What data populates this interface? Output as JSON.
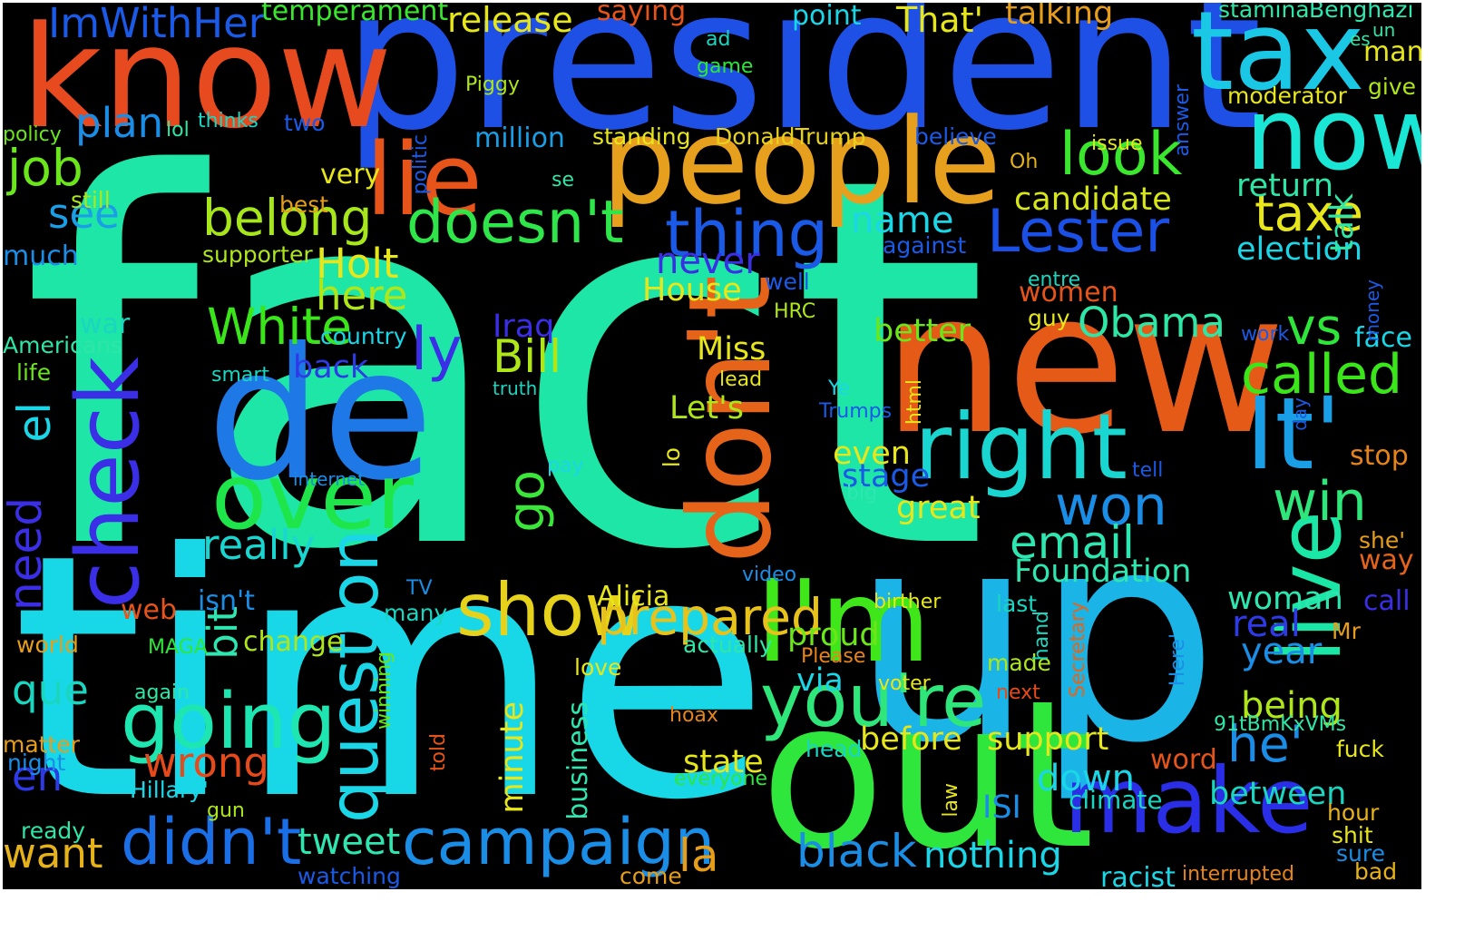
{
  "words": [
    {
      "text": "fact",
      "color": "#1ee6a6"
    },
    {
      "text": "time",
      "color": "#18d8e8"
    },
    {
      "text": "president",
      "color": "#1e50e6"
    },
    {
      "text": "up",
      "color": "#1ab4e6"
    },
    {
      "text": "new",
      "color": "#e65a18"
    },
    {
      "text": "out",
      "color": "#2ee63c"
    },
    {
      "text": "know",
      "color": "#e64a1e"
    },
    {
      "text": "people",
      "color": "#e6a01e"
    },
    {
      "text": "de",
      "color": "#1e78e6"
    },
    {
      "text": "tax",
      "color": "#1ac8e6"
    },
    {
      "text": "now",
      "color": "#1ae6d6"
    },
    {
      "text": "lie",
      "color": "#e6541a"
    },
    {
      "text": "It'",
      "color": "#1a9ee6"
    },
    {
      "text": "make",
      "color": "#2a2ee6"
    },
    {
      "text": "don't",
      "color": "#e6641a"
    },
    {
      "text": "I'm",
      "color": "#3ee61a"
    },
    {
      "text": "live",
      "color": "#1ae6a6"
    },
    {
      "text": "right",
      "color": "#1ad6d0"
    },
    {
      "text": "check",
      "color": "#3a2ee6"
    },
    {
      "text": "over",
      "color": "#1ee64a"
    },
    {
      "text": "going",
      "color": "#1ee6b0"
    },
    {
      "text": "you're",
      "color": "#2ee67a"
    },
    {
      "text": "show",
      "color": "#e6d21a"
    },
    {
      "text": "question",
      "color": "#1ad6e6"
    },
    {
      "text": "campaign",
      "color": "#1a8ee6"
    },
    {
      "text": "didn't",
      "color": "#1a6ee6"
    },
    {
      "text": "doesn't",
      "color": "#2ee64a"
    },
    {
      "text": "thing",
      "color": "#1a5ae6"
    },
    {
      "text": "Lester",
      "color": "#1a50e6"
    },
    {
      "text": "look",
      "color": "#3ae62e"
    },
    {
      "text": "belong",
      "color": "#a6e61a"
    },
    {
      "text": "job",
      "color": "#6ae61a"
    },
    {
      "text": "taxe",
      "color": "#e6e61a"
    },
    {
      "text": "called",
      "color": "#3ae61a"
    },
    {
      "text": "win",
      "color": "#2ee67a"
    },
    {
      "text": "won",
      "color": "#1a8ee6"
    },
    {
      "text": "email",
      "color": "#2ee6b0"
    },
    {
      "text": "need",
      "color": "#3a2ee6"
    },
    {
      "text": "el",
      "color": "#1ad6e6"
    },
    {
      "text": "prepared",
      "color": "#e6c21a"
    },
    {
      "text": "la",
      "color": "#e69e1a"
    },
    {
      "text": "White",
      "color": "#3ae61a"
    },
    {
      "text": "Holt",
      "color": "#e6e61a"
    },
    {
      "text": "here",
      "color": "#aee61a"
    },
    {
      "text": "ly",
      "color": "#3a2ee6"
    },
    {
      "text": "go",
      "color": "#3ae63a"
    },
    {
      "text": "Bill",
      "color": "#aee61a"
    },
    {
      "text": "Obama",
      "color": "#2ee6a6"
    },
    {
      "text": "vs",
      "color": "#2ee63a"
    },
    {
      "text": "he'",
      "color": "#1a8ee6"
    },
    {
      "text": "black",
      "color": "#1a8ee6"
    },
    {
      "text": "ImWithHer",
      "color": "#1a5ae6"
    },
    {
      "text": "plan",
      "color": "#1a8ee6"
    },
    {
      "text": "see",
      "color": "#1a9ee6"
    },
    {
      "text": "really",
      "color": "#1ad6d0"
    },
    {
      "text": "want",
      "color": "#e6b21a"
    },
    {
      "text": "en",
      "color": "#2e3ae6"
    },
    {
      "text": "que",
      "color": "#1ad6c0"
    },
    {
      "text": "bit",
      "color": "#2ee6b0"
    },
    {
      "text": "tweet",
      "color": "#2ee6b0"
    },
    {
      "text": "wrong",
      "color": "#e64a1a"
    },
    {
      "text": "candidate",
      "color": "#d6e61a"
    },
    {
      "text": "name",
      "color": "#1ad6e6"
    },
    {
      "text": "Foundation",
      "color": "#2ee6b0"
    },
    {
      "text": "release",
      "color": "#e6e61a"
    },
    {
      "text": "That'",
      "color": "#e6e61a"
    },
    {
      "text": "talking",
      "color": "#e69e1a"
    },
    {
      "text": "point",
      "color": "#1ad6e6"
    },
    {
      "text": "temperament",
      "color": "#3ae62e"
    },
    {
      "text": "saying",
      "color": "#e6541a"
    },
    {
      "text": "million",
      "color": "#1a9ee6"
    },
    {
      "text": "standing",
      "color": "#e6e61a"
    },
    {
      "text": "DonaldTrump",
      "color": "#e6d21a"
    },
    {
      "text": "very",
      "color": "#e6e61a"
    },
    {
      "text": "never",
      "color": "#3a2ee6"
    },
    {
      "text": "House",
      "color": "#e6e61a"
    },
    {
      "text": "Miss",
      "color": "#e6e61a"
    },
    {
      "text": "Let's",
      "color": "#aee61a"
    },
    {
      "text": "better",
      "color": "#6ae61a"
    },
    {
      "text": "even",
      "color": "#e6e61a"
    },
    {
      "text": "stage",
      "color": "#1a5ae6"
    },
    {
      "text": "great",
      "color": "#e6e61a"
    },
    {
      "text": "year",
      "color": "#1a8ee6"
    },
    {
      "text": "real",
      "color": "#2e3ae6"
    },
    {
      "text": "woman",
      "color": "#2ee6b0"
    },
    {
      "text": "being",
      "color": "#aee61a"
    },
    {
      "text": "support",
      "color": "#e6e61a"
    },
    {
      "text": "down",
      "color": "#1ad6e6"
    },
    {
      "text": "between",
      "color": "#1ad6c0"
    },
    {
      "text": "nothing",
      "color": "#1ad6e6"
    },
    {
      "text": "state",
      "color": "#e6e61a"
    },
    {
      "text": "before",
      "color": "#e6e61a"
    },
    {
      "text": "minute",
      "color": "#e6e61a"
    },
    {
      "text": "business",
      "color": "#2ee6b0"
    },
    {
      "text": "Iraq",
      "color": "#3a2ee6"
    },
    {
      "text": "proud",
      "color": "#6ae61a"
    },
    {
      "text": "via",
      "color": "#1ad6e6"
    },
    {
      "text": "Alicia",
      "color": "#e6e61a"
    },
    {
      "text": "ISI",
      "color": "#1a8ee6"
    },
    {
      "text": "return",
      "color": "#2ee6a6"
    },
    {
      "text": "election",
      "color": "#1ad6e6"
    },
    {
      "text": "talk",
      "color": "#2ee6a6"
    },
    {
      "text": "stamina",
      "color": "#2ee6a6"
    },
    {
      "text": "Benghazi",
      "color": "#2ee6b0"
    },
    {
      "text": "man",
      "color": "#e6e61a"
    },
    {
      "text": "give",
      "color": "#aee61a"
    },
    {
      "text": "moderator",
      "color": "#e6e61a"
    },
    {
      "text": "women",
      "color": "#e6541a"
    },
    {
      "text": "face",
      "color": "#1ad6e6"
    },
    {
      "text": "stop",
      "color": "#e6841a"
    },
    {
      "text": "way",
      "color": "#e6641a"
    },
    {
      "text": "call",
      "color": "#3a2ee6"
    },
    {
      "text": "Mr",
      "color": "#e69e1a"
    },
    {
      "text": "hour",
      "color": "#e6b21a"
    },
    {
      "text": "bad",
      "color": "#e6b21a"
    },
    {
      "text": "she'",
      "color": "#e69e1a"
    },
    {
      "text": "word",
      "color": "#e6541a"
    },
    {
      "text": "fuck",
      "color": "#e6e61a"
    },
    {
      "text": "sure",
      "color": "#1a8ee6"
    },
    {
      "text": "shit",
      "color": "#e6e61a"
    },
    {
      "text": "racist",
      "color": "#1ad6e6"
    },
    {
      "text": "interrupted",
      "color": "#e6841a"
    },
    {
      "text": "climate",
      "color": "#1ad6c0"
    },
    {
      "text": "much",
      "color": "#1a8ee6"
    },
    {
      "text": "still",
      "color": "#aee61a"
    },
    {
      "text": "best",
      "color": "#e69e1a"
    },
    {
      "text": "supporter",
      "color": "#aee61a"
    },
    {
      "text": "policy",
      "color": "#6ae61a"
    },
    {
      "text": "lol",
      "color": "#2ee6a6"
    },
    {
      "text": "thinks",
      "color": "#1ad6c0"
    },
    {
      "text": "two",
      "color": "#1a5ae6"
    },
    {
      "text": "war",
      "color": "#1ad6c0"
    },
    {
      "text": "Americans",
      "color": "#2ee6a6"
    },
    {
      "text": "life",
      "color": "#6ae61a"
    },
    {
      "text": "country",
      "color": "#1ad6e6"
    },
    {
      "text": "back",
      "color": "#2e3ae6"
    },
    {
      "text": "smart",
      "color": "#1ad6c0"
    },
    {
      "text": "truth",
      "color": "#1ad6c0"
    },
    {
      "text": "internet",
      "color": "#1a8ee6"
    },
    {
      "text": "web",
      "color": "#e6541a"
    },
    {
      "text": "isn't",
      "color": "#1a8ee6"
    },
    {
      "text": "change",
      "color": "#aee61a"
    },
    {
      "text": "MAGA",
      "color": "#2ee63a"
    },
    {
      "text": "world",
      "color": "#e69e1a"
    },
    {
      "text": "matter",
      "color": "#e69e1a"
    },
    {
      "text": "night",
      "color": "#1a8ee6"
    },
    {
      "text": "Hillary'",
      "color": "#1ad6e6"
    },
    {
      "text": "gun",
      "color": "#aee61a"
    },
    {
      "text": "ready",
      "color": "#2ee6a6"
    },
    {
      "text": "watching",
      "color": "#1a5ae6"
    },
    {
      "text": "again",
      "color": "#2ee6a6"
    },
    {
      "text": "many",
      "color": "#1ad6c0"
    },
    {
      "text": "winning",
      "color": "#6ae61a"
    },
    {
      "text": "TV",
      "color": "#1a8ee6"
    },
    {
      "text": "told",
      "color": "#e6541a"
    },
    {
      "text": "love",
      "color": "#e6e61a"
    },
    {
      "text": "come",
      "color": "#e69e1a"
    },
    {
      "text": "everyone",
      "color": "#2ee63a"
    },
    {
      "text": "hoax",
      "color": "#e6841a"
    },
    {
      "text": "head",
      "color": "#1ad6c0"
    },
    {
      "text": "actually",
      "color": "#2ee6a6"
    },
    {
      "text": "video",
      "color": "#1a8ee6"
    },
    {
      "text": "pay",
      "color": "#1ad6e6"
    },
    {
      "text": "lo",
      "color": "#e6e61a"
    },
    {
      "text": "Piggy",
      "color": "#aee61a"
    },
    {
      "text": "game",
      "color": "#2ee63a"
    },
    {
      "text": "ad",
      "color": "#1ad6c0"
    },
    {
      "text": "politic",
      "color": "#1a5ae6"
    },
    {
      "text": "se",
      "color": "#2ee6a6"
    },
    {
      "text": "Oh",
      "color": "#e6b21a"
    },
    {
      "text": "believe",
      "color": "#1a5ae6"
    },
    {
      "text": "issue",
      "color": "#e6e61a"
    },
    {
      "text": "answer",
      "color": "#1a5ae6"
    },
    {
      "text": "against",
      "color": "#1a5ae6"
    },
    {
      "text": "well",
      "color": "#1a5ae6"
    },
    {
      "text": "HRC",
      "color": "#aee61a"
    },
    {
      "text": "entre",
      "color": "#1ad6c0"
    },
    {
      "text": "guy",
      "color": "#e6e61a"
    },
    {
      "text": "lead",
      "color": "#e6e61a"
    },
    {
      "text": "Ye",
      "color": "#1ad6e6"
    },
    {
      "text": "Trumps",
      "color": "#1a5ae6"
    },
    {
      "text": "html",
      "color": "#e6e61a"
    },
    {
      "text": "tell",
      "color": "#1a5ae6"
    },
    {
      "text": "big",
      "color": "#2ee6b0"
    },
    {
      "text": "birther",
      "color": "#e6e61a"
    },
    {
      "text": "last",
      "color": "#1ad6c0"
    },
    {
      "text": "made",
      "color": "#aee61a"
    },
    {
      "text": "Please",
      "color": "#e6841a"
    },
    {
      "text": "voter",
      "color": "#e6e61a"
    },
    {
      "text": "next",
      "color": "#e64a1a"
    },
    {
      "text": "law",
      "color": "#e6e61a"
    },
    {
      "text": "hand",
      "color": "#1ad6c0"
    },
    {
      "text": "Secretary",
      "color": "#e6641a"
    },
    {
      "text": "Here'",
      "color": "#1a8ee6"
    },
    {
      "text": "91tBmKxVMs",
      "color": "#2ee6a6"
    },
    {
      "text": "work",
      "color": "#1a5ae6"
    },
    {
      "text": "money",
      "color": "#1a5ae6"
    },
    {
      "text": "day",
      "color": "#1a5ae6"
    },
    {
      "text": "es",
      "color": "#2ee6a6"
    },
    {
      "text": "un",
      "color": "#2ee6a6"
    }
  ]
}
